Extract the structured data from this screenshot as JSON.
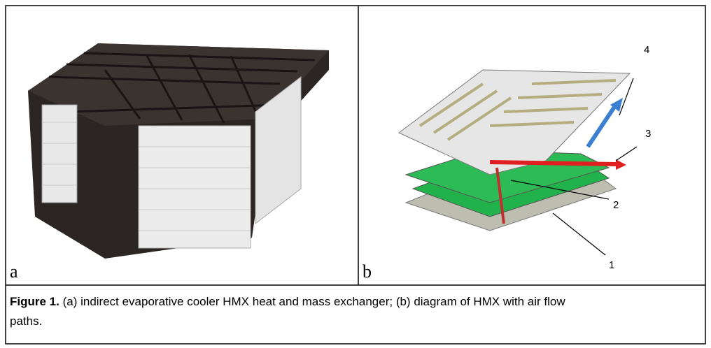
{
  "panels": [
    {
      "label": "a"
    },
    {
      "label": "b",
      "callouts": [
        "4",
        "3",
        "2",
        "1"
      ]
    }
  ],
  "caption": {
    "label": "Figure 1.",
    "text": " (a) indirect evaporative cooler HMX heat and mass exchanger; (b) diagram of HMX with air flow paths."
  }
}
